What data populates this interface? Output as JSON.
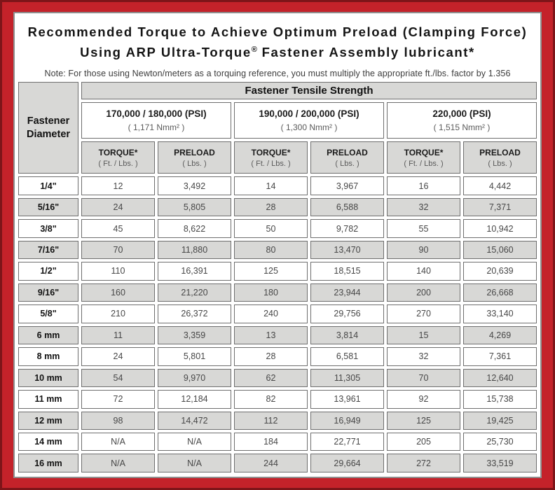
{
  "colors": {
    "frame_red": "#c4222a",
    "frame_dark": "#7d1519",
    "header_gray": "#d8d8d6"
  },
  "title": {
    "line1": "Recommended Torque to Achieve Optimum Preload (Clamping Force)",
    "line2_prefix": "Using ARP Ultra-Torque",
    "line2_reg": "®",
    "line2_suffix": " Fastener Assembly lubricant*"
  },
  "note": "Note: For those using Newton/meters as a torquing reference, you must multiply the appropriate ft./lbs. factor by 1.356",
  "table": {
    "corner_line1": "Fastener",
    "corner_line2": "Diameter",
    "tensile_header": "Fastener Tensile Strength",
    "groups": [
      {
        "psi": "170,000 / 180,000 (PSI)",
        "nmm": "( 1,171 Nmm² )"
      },
      {
        "psi": "190,000 / 200,000 (PSI)",
        "nmm": "( 1,300 Nmm² )"
      },
      {
        "psi": "220,000 (PSI)",
        "nmm": "( 1,515 Nmm² )"
      }
    ],
    "subheaders": {
      "torque_label": "TORQUE*",
      "torque_unit": "( Ft. / Lbs. )",
      "preload_label": "PRELOAD",
      "preload_unit": "( Lbs. )"
    },
    "rows": [
      {
        "diameter": "1/4\"",
        "values": [
          "12",
          "3,492",
          "14",
          "3,967",
          "16",
          "4,442"
        ]
      },
      {
        "diameter": "5/16\"",
        "values": [
          "24",
          "5,805",
          "28",
          "6,588",
          "32",
          "7,371"
        ]
      },
      {
        "diameter": "3/8\"",
        "values": [
          "45",
          "8,622",
          "50",
          "9,782",
          "55",
          "10,942"
        ]
      },
      {
        "diameter": "7/16\"",
        "values": [
          "70",
          "11,880",
          "80",
          "13,470",
          "90",
          "15,060"
        ]
      },
      {
        "diameter": "1/2\"",
        "values": [
          "110",
          "16,391",
          "125",
          "18,515",
          "140",
          "20,639"
        ]
      },
      {
        "diameter": "9/16\"",
        "values": [
          "160",
          "21,220",
          "180",
          "23,944",
          "200",
          "26,668"
        ]
      },
      {
        "diameter": "5/8\"",
        "values": [
          "210",
          "26,372",
          "240",
          "29,756",
          "270",
          "33,140"
        ]
      },
      {
        "diameter": "6 mm",
        "values": [
          "11",
          "3,359",
          "13",
          "3,814",
          "15",
          "4,269"
        ]
      },
      {
        "diameter": "8 mm",
        "values": [
          "24",
          "5,801",
          "28",
          "6,581",
          "32",
          "7,361"
        ]
      },
      {
        "diameter": "10 mm",
        "values": [
          "54",
          "9,970",
          "62",
          "11,305",
          "70",
          "12,640"
        ]
      },
      {
        "diameter": "11 mm",
        "values": [
          "72",
          "12,184",
          "82",
          "13,961",
          "92",
          "15,738"
        ]
      },
      {
        "diameter": "12 mm",
        "values": [
          "98",
          "14,472",
          "112",
          "16,949",
          "125",
          "19,425"
        ]
      },
      {
        "diameter": "14 mm",
        "values": [
          "N/A",
          "N/A",
          "184",
          "22,771",
          "205",
          "25,730"
        ]
      },
      {
        "diameter": "16 mm",
        "values": [
          "N/A",
          "N/A",
          "244",
          "29,664",
          "272",
          "33,519"
        ]
      }
    ]
  }
}
